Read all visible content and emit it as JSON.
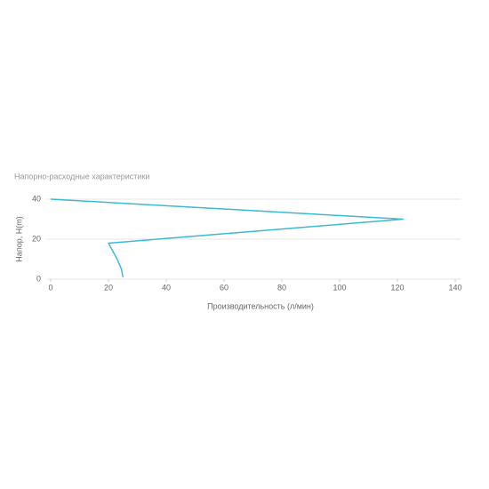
{
  "chart_data": {
    "type": "line",
    "title": "Напорно-расходные характеристики",
    "x_label": "Производительность (л/мин)",
    "y_label": "Напор, H(m)",
    "x": [
      0,
      122,
      20,
      23,
      24.5,
      25
    ],
    "series": [
      {
        "color": "#3cb9d6",
        "values": [
          40,
          30,
          18,
          10,
          5,
          1
        ]
      }
    ],
    "xlim": [
      0,
      140
    ],
    "xticks": [
      0,
      20,
      40,
      60,
      80,
      100,
      120,
      140
    ],
    "ylim": [
      0,
      40
    ],
    "yticks": [
      0,
      20,
      40
    ],
    "grid": true
  }
}
